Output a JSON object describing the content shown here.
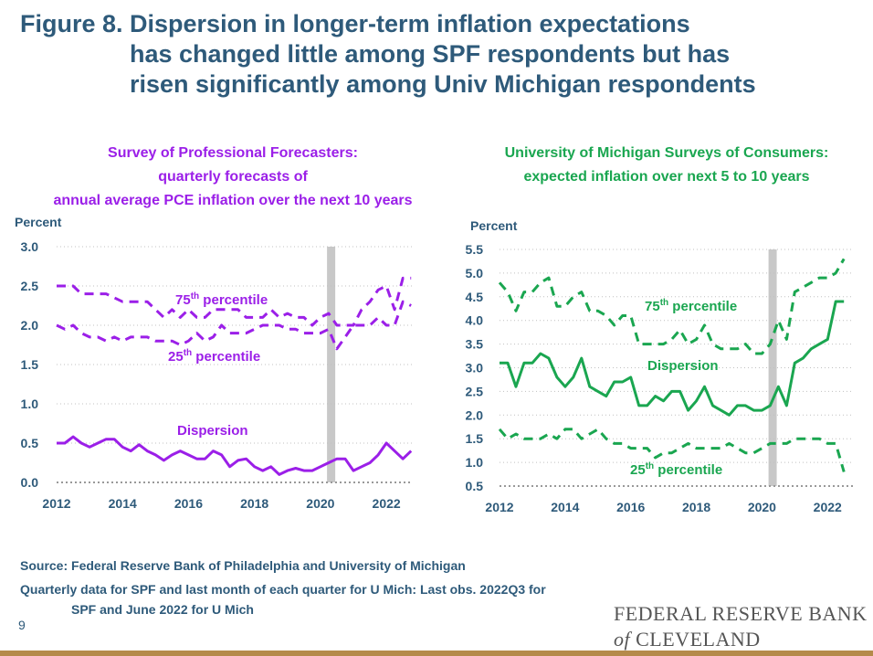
{
  "title": {
    "line1": "Figure 8. Dispersion in longer-term inflation expectations",
    "line2": "has changed little among SPF respondents but has",
    "line3": "risen significantly among Univ Michigan respondents"
  },
  "colors": {
    "spf": "#9b1fe8",
    "um": "#1aa650",
    "title": "#2e5a7a",
    "recession": "#c8c8c8"
  },
  "chart_data": [
    {
      "type": "line",
      "title_lines": [
        "Survey of Professional Forecasters:",
        "quarterly forecasts of",
        "annual average PCE inflation over the next 10 years"
      ],
      "ylabel": "Percent",
      "ylim": [
        0,
        3.0
      ],
      "xlim": [
        2012,
        2022.8
      ],
      "yticks": [
        "0.0",
        "0.5",
        "1.0",
        "1.5",
        "2.0",
        "2.5",
        "3.0"
      ],
      "xticks": [
        "2012",
        "2014",
        "2016",
        "2018",
        "2020",
        "2022"
      ],
      "recession": [
        2020.2,
        2020.45
      ],
      "x": [
        2012.0,
        2012.25,
        2012.5,
        2012.75,
        2013.0,
        2013.25,
        2013.5,
        2013.75,
        2014.0,
        2014.25,
        2014.5,
        2014.75,
        2015.0,
        2015.25,
        2015.5,
        2015.75,
        2016.0,
        2016.25,
        2016.5,
        2016.75,
        2017.0,
        2017.25,
        2017.5,
        2017.75,
        2018.0,
        2018.25,
        2018.5,
        2018.75,
        2019.0,
        2019.25,
        2019.5,
        2019.75,
        2020.0,
        2020.25,
        2020.5,
        2020.75,
        2021.0,
        2021.25,
        2021.5,
        2021.75,
        2022.0,
        2022.25,
        2022.5,
        2022.75
      ],
      "series": [
        {
          "name": "75th percentile",
          "dash": true,
          "label": "75",
          "values": [
            2.5,
            2.5,
            2.5,
            2.4,
            2.4,
            2.4,
            2.4,
            2.35,
            2.3,
            2.3,
            2.3,
            2.3,
            2.2,
            2.1,
            2.2,
            2.1,
            2.2,
            2.1,
            2.1,
            2.2,
            2.2,
            2.2,
            2.2,
            2.1,
            2.1,
            2.1,
            2.2,
            2.1,
            2.15,
            2.1,
            2.1,
            2.0,
            2.1,
            2.15,
            2.0,
            2.0,
            2.0,
            2.2,
            2.3,
            2.45,
            2.5,
            2.2,
            2.6,
            2.6
          ]
        },
        {
          "name": "25th percentile",
          "dash": true,
          "label": "25",
          "values": [
            2.0,
            1.95,
            2.0,
            1.9,
            1.85,
            1.85,
            1.8,
            1.85,
            1.8,
            1.85,
            1.85,
            1.85,
            1.8,
            1.8,
            1.8,
            1.75,
            1.8,
            1.9,
            1.8,
            1.85,
            2.0,
            1.9,
            1.9,
            1.9,
            1.95,
            2.0,
            2.0,
            2.0,
            1.95,
            1.95,
            1.9,
            1.9,
            1.9,
            1.95,
            1.7,
            1.85,
            2.0,
            2.0,
            2.0,
            2.1,
            2.0,
            2.0,
            2.3,
            2.25
          ]
        },
        {
          "name": "Dispersion",
          "dash": false,
          "label": "Dispersion",
          "values": [
            0.5,
            0.5,
            0.58,
            0.5,
            0.45,
            0.5,
            0.55,
            0.55,
            0.45,
            0.4,
            0.48,
            0.4,
            0.35,
            0.28,
            0.35,
            0.4,
            0.35,
            0.3,
            0.3,
            0.4,
            0.35,
            0.2,
            0.28,
            0.3,
            0.2,
            0.15,
            0.2,
            0.1,
            0.15,
            0.18,
            0.15,
            0.15,
            0.2,
            0.25,
            0.3,
            0.3,
            0.15,
            0.2,
            0.25,
            0.35,
            0.5,
            0.4,
            0.3,
            0.4
          ]
        }
      ],
      "labels": {
        "p75": "75",
        "p25": "25",
        "th": "th",
        "percentile": " percentile",
        "dispersion": "Dispersion"
      }
    },
    {
      "type": "line",
      "title_lines": [
        "University of Michigan Surveys of Consumers:",
        "expected inflation over next 5 to 10 years"
      ],
      "ylabel": "Percent",
      "ylim": [
        0.5,
        5.5
      ],
      "xlim": [
        2012,
        2022.8
      ],
      "yticks": [
        "0.5",
        "1.0",
        "1.5",
        "2.0",
        "2.5",
        "3.0",
        "3.5",
        "4.0",
        "4.5",
        "5.0",
        "5.5"
      ],
      "xticks": [
        "2012",
        "2014",
        "2016",
        "2018",
        "2020",
        "2022"
      ],
      "recession": [
        2020.2,
        2020.45
      ],
      "x": [
        2012.0,
        2012.25,
        2012.5,
        2012.75,
        2013.0,
        2013.25,
        2013.5,
        2013.75,
        2014.0,
        2014.25,
        2014.5,
        2014.75,
        2015.0,
        2015.25,
        2015.5,
        2015.75,
        2016.0,
        2016.25,
        2016.5,
        2016.75,
        2017.0,
        2017.25,
        2017.5,
        2017.75,
        2018.0,
        2018.25,
        2018.5,
        2018.75,
        2019.0,
        2019.25,
        2019.5,
        2019.75,
        2020.0,
        2020.25,
        2020.5,
        2020.75,
        2021.0,
        2021.25,
        2021.5,
        2021.75,
        2022.0,
        2022.25,
        2022.5
      ],
      "series": [
        {
          "name": "75th percentile",
          "dash": true,
          "label": "75",
          "values": [
            4.8,
            4.6,
            4.2,
            4.6,
            4.6,
            4.8,
            4.9,
            4.3,
            4.3,
            4.5,
            4.6,
            4.2,
            4.2,
            4.1,
            3.9,
            4.1,
            4.1,
            3.5,
            3.5,
            3.5,
            3.5,
            3.6,
            3.8,
            3.5,
            3.6,
            3.9,
            3.5,
            3.4,
            3.4,
            3.4,
            3.5,
            3.3,
            3.3,
            3.5,
            4.0,
            3.6,
            4.6,
            4.7,
            4.8,
            4.9,
            4.9,
            5.0,
            5.3
          ]
        },
        {
          "name": "Dispersion",
          "dash": false,
          "label": "Dispersion",
          "values": [
            3.1,
            3.1,
            2.6,
            3.1,
            3.1,
            3.3,
            3.2,
            2.8,
            2.6,
            2.8,
            3.2,
            2.6,
            2.5,
            2.4,
            2.7,
            2.7,
            2.8,
            2.2,
            2.2,
            2.4,
            2.3,
            2.5,
            2.5,
            2.1,
            2.3,
            2.6,
            2.2,
            2.1,
            2.0,
            2.2,
            2.2,
            2.1,
            2.1,
            2.2,
            2.6,
            2.2,
            3.1,
            3.2,
            3.4,
            3.5,
            3.6,
            4.4,
            4.4
          ]
        },
        {
          "name": "25th percentile",
          "dash": true,
          "label": "25",
          "values": [
            1.7,
            1.5,
            1.6,
            1.5,
            1.5,
            1.5,
            1.6,
            1.5,
            1.7,
            1.7,
            1.5,
            1.6,
            1.7,
            1.5,
            1.4,
            1.4,
            1.3,
            1.3,
            1.3,
            1.1,
            1.2,
            1.2,
            1.3,
            1.4,
            1.3,
            1.3,
            1.3,
            1.3,
            1.4,
            1.3,
            1.2,
            1.2,
            1.3,
            1.4,
            1.4,
            1.4,
            1.5,
            1.5,
            1.5,
            1.5,
            1.4,
            1.4,
            0.8
          ]
        }
      ],
      "labels": {
        "p75": "75",
        "p25": "25",
        "th": "th",
        "percentile": " percentile",
        "dispersion": "Dispersion"
      }
    }
  ],
  "footer": {
    "source": "Source: Federal Reserve Bank of Philadelphia and University of Michigan",
    "note1": "Quarterly data for SPF and last month of each quarter for U Mich: Last obs. 2022Q3 for",
    "note2": "SPF and June 2022 for U Mich",
    "page": "9"
  },
  "logo": {
    "line1": "FEDERAL RESERVE BANK",
    "of": "of",
    "line2": "CLEVELAND"
  }
}
